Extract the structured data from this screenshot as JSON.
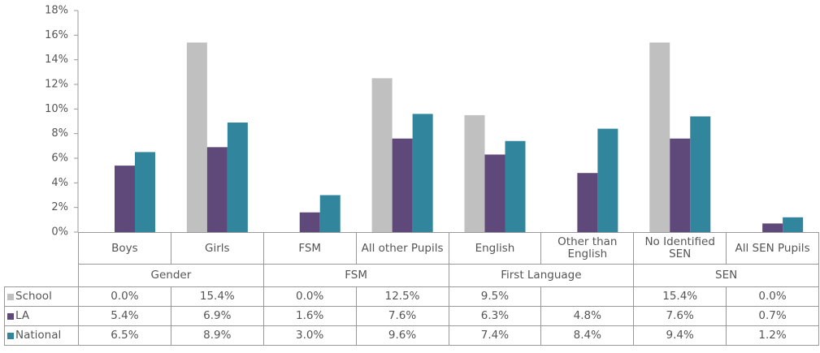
{
  "chart_data": {
    "type": "bar",
    "categories": [
      "Boys",
      "Girls",
      "FSM",
      "All other Pupils",
      "English",
      "Other than English",
      "No Identified SEN",
      "All SEN Pupils"
    ],
    "groups": [
      "Gender",
      "FSM",
      "First Language",
      "SEN"
    ],
    "series": [
      {
        "name": "School",
        "color": "#c0c0c0",
        "values": [
          0.0,
          15.4,
          0.0,
          12.5,
          9.5,
          null,
          15.4,
          0.0
        ],
        "value_labels": [
          "0.0%",
          "15.4%",
          "0.0%",
          "12.5%",
          "9.5%",
          null,
          "15.4%",
          "0.0%"
        ]
      },
      {
        "name": "LA",
        "color": "#5f497a",
        "values": [
          5.4,
          6.9,
          1.6,
          7.6,
          6.3,
          4.8,
          7.6,
          0.7
        ],
        "value_labels": [
          "5.4%",
          "6.9%",
          "1.6%",
          "7.6%",
          "6.3%",
          "4.8%",
          "7.6%",
          "0.7%"
        ]
      },
      {
        "name": "National",
        "color": "#31859c",
        "values": [
          6.5,
          8.9,
          3.0,
          9.6,
          7.4,
          8.4,
          9.4,
          1.2
        ],
        "value_labels": [
          "6.5%",
          "8.9%",
          "3.0%",
          "9.6%",
          "7.4%",
          "8.4%",
          "9.4%",
          "1.2%"
        ]
      }
    ],
    "ylim": [
      0,
      18
    ],
    "yticks": [
      {
        "value": 0,
        "label": "0%"
      },
      {
        "value": 2,
        "label": "2%"
      },
      {
        "value": 4,
        "label": "4%"
      },
      {
        "value": 6,
        "label": "6%"
      },
      {
        "value": 8,
        "label": "8%"
      },
      {
        "value": 10,
        "label": "10%"
      },
      {
        "value": 12,
        "label": "12%"
      },
      {
        "value": 14,
        "label": "14%"
      },
      {
        "value": 16,
        "label": "16%"
      },
      {
        "value": 18,
        "label": "18%"
      }
    ],
    "grid": false
  }
}
